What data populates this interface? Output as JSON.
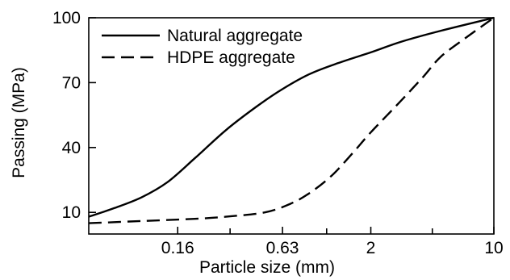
{
  "chart_data": {
    "type": "line",
    "title": "",
    "xlabel": "Particle size (mm)",
    "ylabel": "Passing (MPa)",
    "x_scale": "log",
    "xlim": [
      0.05,
      10
    ],
    "ylim": [
      0,
      100
    ],
    "x_ticks": [
      0.16,
      0.63,
      2,
      10
    ],
    "x_tick_labels": [
      "0.16",
      "0.63",
      "2",
      "10"
    ],
    "y_ticks": [
      10,
      40,
      70,
      100
    ],
    "y_tick_labels": [
      "10",
      "40",
      "70",
      "100"
    ],
    "grid": false,
    "legend_position": "top-left",
    "series": [
      {
        "name": "Natural aggregate",
        "line_style": "solid",
        "color": "#000000",
        "x": [
          0.05,
          0.07,
          0.1,
          0.14,
          0.2,
          0.3,
          0.45,
          0.63,
          0.9,
          1.3,
          2,
          3,
          5,
          10
        ],
        "y": [
          8,
          12,
          17,
          24,
          35,
          48,
          59,
          67,
          74,
          79,
          84,
          89,
          94,
          100
        ]
      },
      {
        "name": "HDPE aggregate",
        "line_style": "dashed",
        "color": "#000000",
        "x": [
          0.05,
          0.1,
          0.2,
          0.3,
          0.5,
          0.7,
          0.9,
          1.2,
          1.6,
          2,
          3,
          4,
          5,
          7,
          10
        ],
        "y": [
          5,
          6,
          7,
          8,
          10,
          14,
          19,
          27,
          38,
          47,
          62,
          73,
          82,
          91,
          100
        ]
      }
    ]
  }
}
